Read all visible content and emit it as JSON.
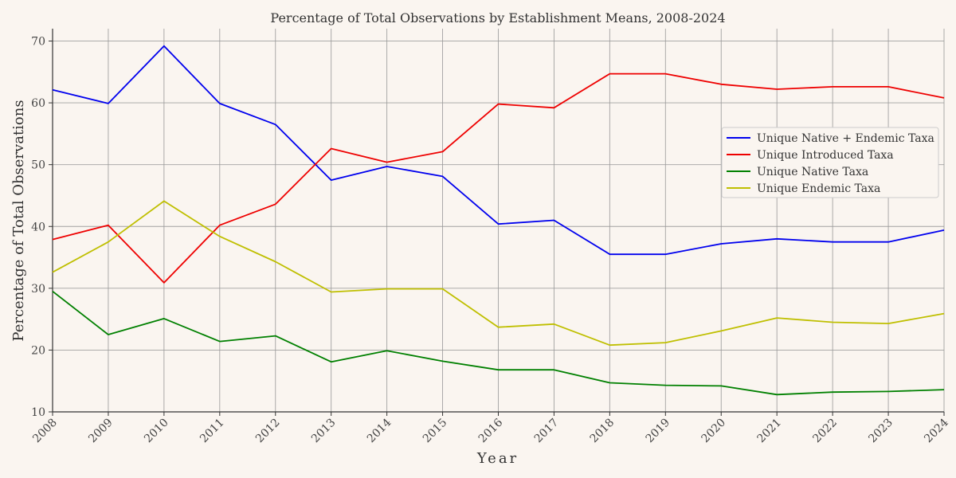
{
  "chart_data": {
    "type": "line",
    "title": "Percentage of Total Observations by Establishment Means, 2008-2024",
    "xlabel": "Year",
    "ylabel": "Percentage of Total Observations",
    "x": [
      2008,
      2009,
      2010,
      2011,
      2012,
      2013,
      2014,
      2015,
      2016,
      2017,
      2018,
      2019,
      2020,
      2021,
      2022,
      2023,
      2024
    ],
    "xlim": [
      2008,
      2024
    ],
    "ylim": [
      10,
      72
    ],
    "yticks": [
      10,
      20,
      30,
      40,
      50,
      60,
      70
    ],
    "grid": true,
    "legend_position": "right",
    "series": [
      {
        "name": "Unique Native + Endemic Taxa",
        "color": "#0000ee",
        "values": [
          62.1,
          59.9,
          69.2,
          59.9,
          56.5,
          47.5,
          49.7,
          48.1,
          40.4,
          41.0,
          35.5,
          35.5,
          37.2,
          38.0,
          37.5,
          37.5,
          39.4
        ]
      },
      {
        "name": "Unique Introduced Taxa",
        "color": "#ee0000",
        "values": [
          37.9,
          40.2,
          30.9,
          40.2,
          43.6,
          52.6,
          50.4,
          52.1,
          59.8,
          59.2,
          64.7,
          64.7,
          63.0,
          62.2,
          62.6,
          62.6,
          60.8
        ]
      },
      {
        "name": "Unique Native Taxa",
        "color": "#008000",
        "values": [
          29.5,
          22.5,
          25.1,
          21.4,
          22.3,
          18.1,
          19.9,
          18.2,
          16.8,
          16.8,
          14.7,
          14.3,
          14.2,
          12.8,
          13.2,
          13.3,
          13.6
        ]
      },
      {
        "name": "Unique Endemic Taxa",
        "color": "#bfbf00",
        "values": [
          32.6,
          37.5,
          44.1,
          38.4,
          34.3,
          29.4,
          29.9,
          29.9,
          23.7,
          24.2,
          20.8,
          21.2,
          23.1,
          25.2,
          24.5,
          24.3,
          25.9
        ]
      }
    ]
  }
}
